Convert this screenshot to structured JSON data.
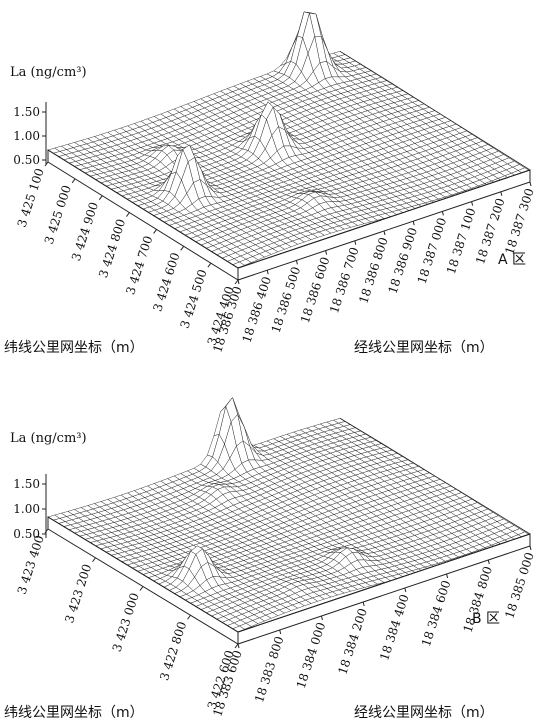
{
  "chart_data": [
    {
      "type": "surface",
      "panel_label": "A 区",
      "zlabel": "La (ng/cm³)",
      "z_ticks": [
        "1.50",
        "1.00",
        "0.50"
      ],
      "lat_label": "纬线公里网坐标（m）",
      "lon_label": "经线公里网坐标（m）",
      "lat_ticks": [
        "3 425 100",
        "3 425 000",
        "3 424 900",
        "3 424 800",
        "3 424 700",
        "3 424 600",
        "3 424 500",
        "3 424 400"
      ],
      "lon_ticks": [
        "18 386 300",
        "18 386 400",
        "18 386 500",
        "18 386 600",
        "18 386 700",
        "18 386 800",
        "18 386 900",
        "18 387 000",
        "18 387 100",
        "18 387 200",
        "18 387 300"
      ],
      "base_z": 0.62,
      "peaks": [
        {
          "lon": 18387150,
          "lat": 3425050,
          "z": 2.0
        },
        {
          "lon": 18386800,
          "lat": 3424820,
          "z": 1.6
        },
        {
          "lon": 18386450,
          "lat": 3424750,
          "z": 1.7
        },
        {
          "lon": 18386550,
          "lat": 3424920,
          "z": 0.9
        },
        {
          "lon": 18386700,
          "lat": 3424550,
          "z": 0.8
        },
        {
          "lon": 18386350,
          "lat": 3424550,
          "z": 0.6
        }
      ]
    },
    {
      "type": "surface",
      "panel_label": "B 区",
      "zlabel": "La (ng/cm³)",
      "z_ticks": [
        "1.50",
        "1.00",
        "0.50"
      ],
      "lat_label": "纬线公里网坐标（m）",
      "lon_label": "经线公里网坐标（m）",
      "lat_ticks": [
        "3 423 400",
        "3 423 200",
        "3 423 000",
        "3 422 800",
        "3 422 600"
      ],
      "lon_ticks": [
        "18 383 600",
        "18 383 800",
        "18 384 000",
        "18 384 200",
        "18 384 400",
        "18 384 600",
        "18 384 800",
        "18 385 000"
      ],
      "base_z": 0.55,
      "peaks": [
        {
          "lon": 18384450,
          "lat": 3423380,
          "z": 1.8
        },
        {
          "lon": 18384250,
          "lat": 3423250,
          "z": 0.7
        },
        {
          "lon": 18383750,
          "lat": 3422900,
          "z": 1.2
        },
        {
          "lon": 18384300,
          "lat": 3422750,
          "z": 0.8
        },
        {
          "lon": 18384000,
          "lat": 3422700,
          "z": 0.6
        }
      ]
    }
  ]
}
